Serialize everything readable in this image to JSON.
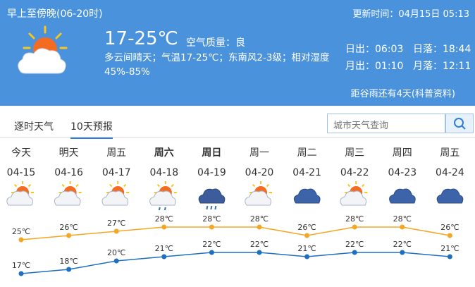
{
  "header": {
    "period": "早上至傍晚(06-20时)",
    "updated": "更新时间：04月15日 05:13",
    "temperature": "17-25℃",
    "air_quality": "空气质量：良",
    "description": "多云间晴天；气温17-25℃；东南风2-3级；相对湿度45%-85%",
    "sunrise": "日出：06:03",
    "sunset": "日落：18:44",
    "moonrise": "月出：01:10",
    "moonset": "月落：12:11",
    "solar_term": "距谷雨还有4天(科普资料)"
  },
  "tabs": [
    "逐时天气",
    "10天预报"
  ],
  "search": {
    "placeholder": "城市天气查询"
  },
  "forecast": {
    "days": [
      "今天",
      "明天",
      "周五",
      "周六",
      "周日",
      "周一",
      "周二",
      "周三",
      "周四",
      "周五"
    ],
    "dates": [
      "04-15",
      "04-16",
      "04-17",
      "04-18",
      "04-19",
      "04-20",
      "04-21",
      "04-22",
      "04-23",
      "04-24"
    ],
    "high": {
      "values": [
        25,
        26,
        27,
        28,
        28,
        28,
        26,
        28,
        28,
        26
      ],
      "value_labels": [
        "25℃",
        "26℃",
        "27℃",
        "28℃",
        "28℃",
        "28℃",
        "26℃",
        "28℃",
        "28℃",
        "26℃"
      ]
    },
    "low": {
      "values": [
        17,
        18,
        20,
        21,
        22,
        22,
        21,
        22,
        22,
        21
      ],
      "value_labels": [
        "17℃",
        "18℃",
        "20℃",
        "21℃",
        "22℃",
        "22℃",
        "21℃",
        "22℃",
        "22℃",
        "21℃"
      ]
    }
  }
}
